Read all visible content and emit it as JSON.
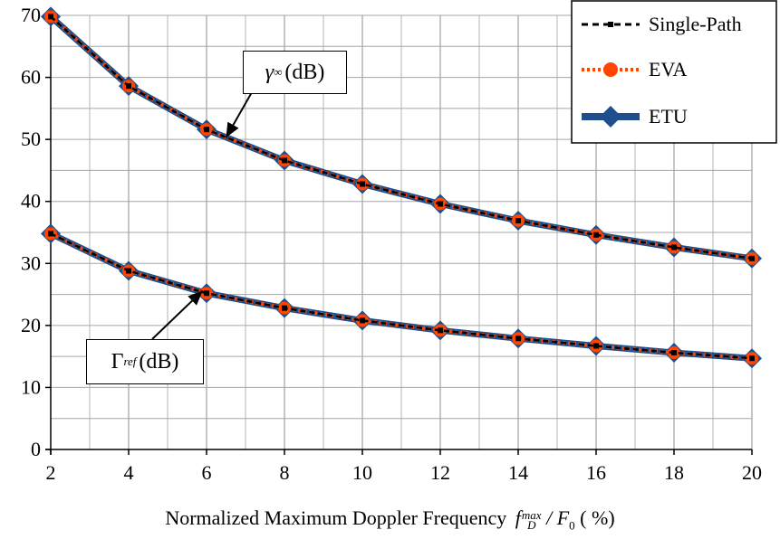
{
  "chart_data": {
    "type": "line",
    "xlabel": "Normalized Maximum Doppler Frequency",
    "xlabel_math": {
      "base": "f",
      "sup": "max",
      "sub": "D",
      "sep": "/",
      "denom": "F",
      "denom_sub": "0",
      "unit": "( %)"
    },
    "x": [
      2,
      4,
      6,
      8,
      10,
      12,
      14,
      16,
      18,
      20
    ],
    "xlim": [
      2,
      20
    ],
    "ylim": [
      0,
      70
    ],
    "xticks": [
      2,
      4,
      6,
      8,
      10,
      12,
      14,
      16,
      18,
      20
    ],
    "yticks": [
      0,
      10,
      20,
      30,
      40,
      50,
      60,
      70
    ],
    "grid": true,
    "legend_position": "top-right",
    "legend": [
      "Single-Path",
      "EVA",
      "ETU"
    ],
    "series": [
      {
        "name": "Single-Path",
        "curve": "gamma_inf",
        "color": "#000000",
        "style": "dashed",
        "values": [
          69.8,
          58.6,
          51.6,
          46.6,
          42.8,
          39.6,
          36.9,
          34.6,
          32.6,
          30.8
        ]
      },
      {
        "name": "EVA",
        "curve": "gamma_inf",
        "color": "#ff4500",
        "style": "dotted-circle",
        "values": [
          69.8,
          58.6,
          51.6,
          46.6,
          42.8,
          39.6,
          36.9,
          34.6,
          32.6,
          30.8
        ]
      },
      {
        "name": "ETU",
        "curve": "gamma_inf",
        "color": "#1f4e8c",
        "style": "solid-diamond",
        "values": [
          69.8,
          58.6,
          51.6,
          46.6,
          42.8,
          39.6,
          36.9,
          34.6,
          32.6,
          30.8
        ]
      },
      {
        "name": "Single-Path",
        "curve": "gamma_ref",
        "color": "#000000",
        "style": "dashed",
        "values": [
          34.8,
          28.8,
          25.2,
          22.8,
          20.8,
          19.2,
          17.9,
          16.7,
          15.6,
          14.7
        ]
      },
      {
        "name": "EVA",
        "curve": "gamma_ref",
        "color": "#ff4500",
        "style": "dotted-circle",
        "values": [
          34.8,
          28.8,
          25.2,
          22.8,
          20.8,
          19.2,
          17.9,
          16.7,
          15.6,
          14.7
        ]
      },
      {
        "name": "ETU",
        "curve": "gamma_ref",
        "color": "#1f4e8c",
        "style": "solid-diamond",
        "values": [
          34.8,
          28.8,
          25.2,
          22.8,
          20.8,
          19.2,
          17.9,
          16.7,
          15.6,
          14.7
        ]
      }
    ],
    "annotations": [
      {
        "symbol": "γ",
        "sub": "∞",
        "paren": "(dB)",
        "curve": "gamma_inf",
        "x": 6.5,
        "y": 50.3
      },
      {
        "symbol": "Γ",
        "sub": "ref",
        "paren": "(dB)",
        "curve": "gamma_ref",
        "x": 5.9,
        "y": 25.6
      }
    ]
  }
}
